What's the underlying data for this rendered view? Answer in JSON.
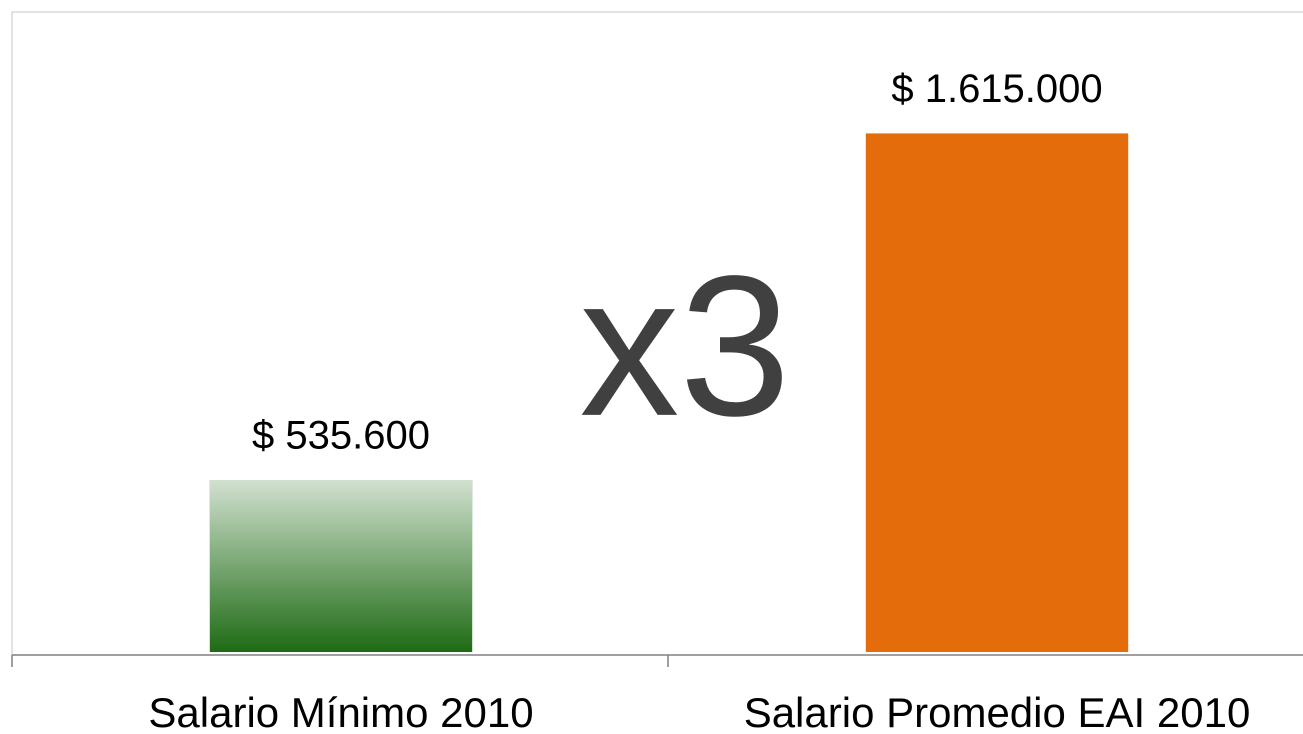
{
  "chart_data": {
    "type": "bar",
    "categories": [
      "Salario Mínimo 2010",
      "Salario Promedio EAI 2010"
    ],
    "values": [
      535600,
      1615000
    ],
    "value_labels": [
      "$ 535.600",
      "$ 1.615.000"
    ],
    "colors": [
      "#1e6b14",
      "#e46c0a"
    ],
    "annotation": "x3",
    "ylim": [
      0,
      1800000
    ]
  }
}
